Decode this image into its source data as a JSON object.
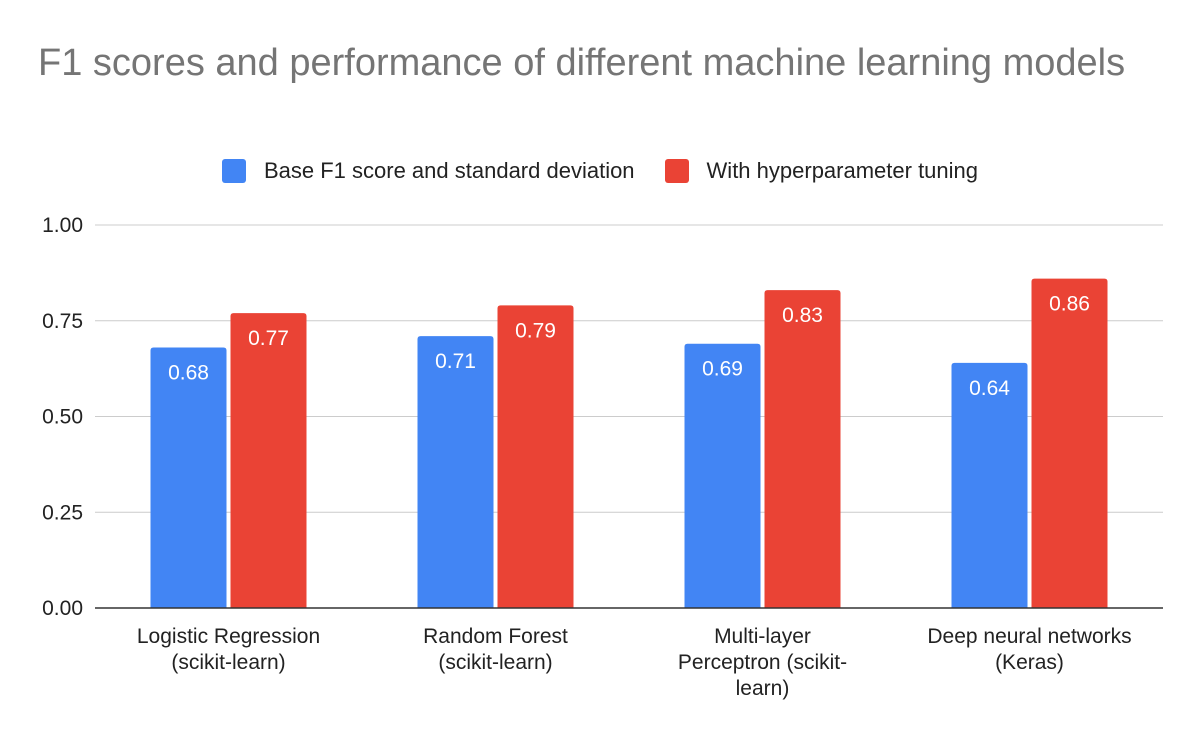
{
  "chart_data": {
    "type": "bar",
    "title": "F1 scores and performance of different machine learning models",
    "categories": [
      [
        "Logistic Regression",
        "(scikit-learn)"
      ],
      [
        "Random Forest",
        "(scikit-learn)"
      ],
      [
        "Multi-layer",
        "Perceptron (scikit-",
        "learn)"
      ],
      [
        "Deep neural networks",
        "(Keras)"
      ]
    ],
    "series": [
      {
        "name": "Base F1 score and standard deviation",
        "color": "#4285f4",
        "values": [
          0.68,
          0.71,
          0.69,
          0.64
        ],
        "labels": [
          "0.68",
          "0.71",
          "0.69",
          "0.64"
        ]
      },
      {
        "name": "With hyperparameter tuning",
        "color": "#ea4335",
        "values": [
          0.77,
          0.79,
          0.83,
          0.86
        ],
        "labels": [
          "0.77",
          "0.79",
          "0.83",
          "0.86"
        ]
      }
    ],
    "ylim": [
      0,
      1
    ],
    "yticks": [
      "0.00",
      "0.25",
      "0.50",
      "0.75",
      "1.00"
    ],
    "ytick_values": [
      0,
      0.25,
      0.5,
      0.75,
      1
    ],
    "xlabel": "",
    "ylabel": "",
    "legend_position": "top",
    "grid": true
  }
}
